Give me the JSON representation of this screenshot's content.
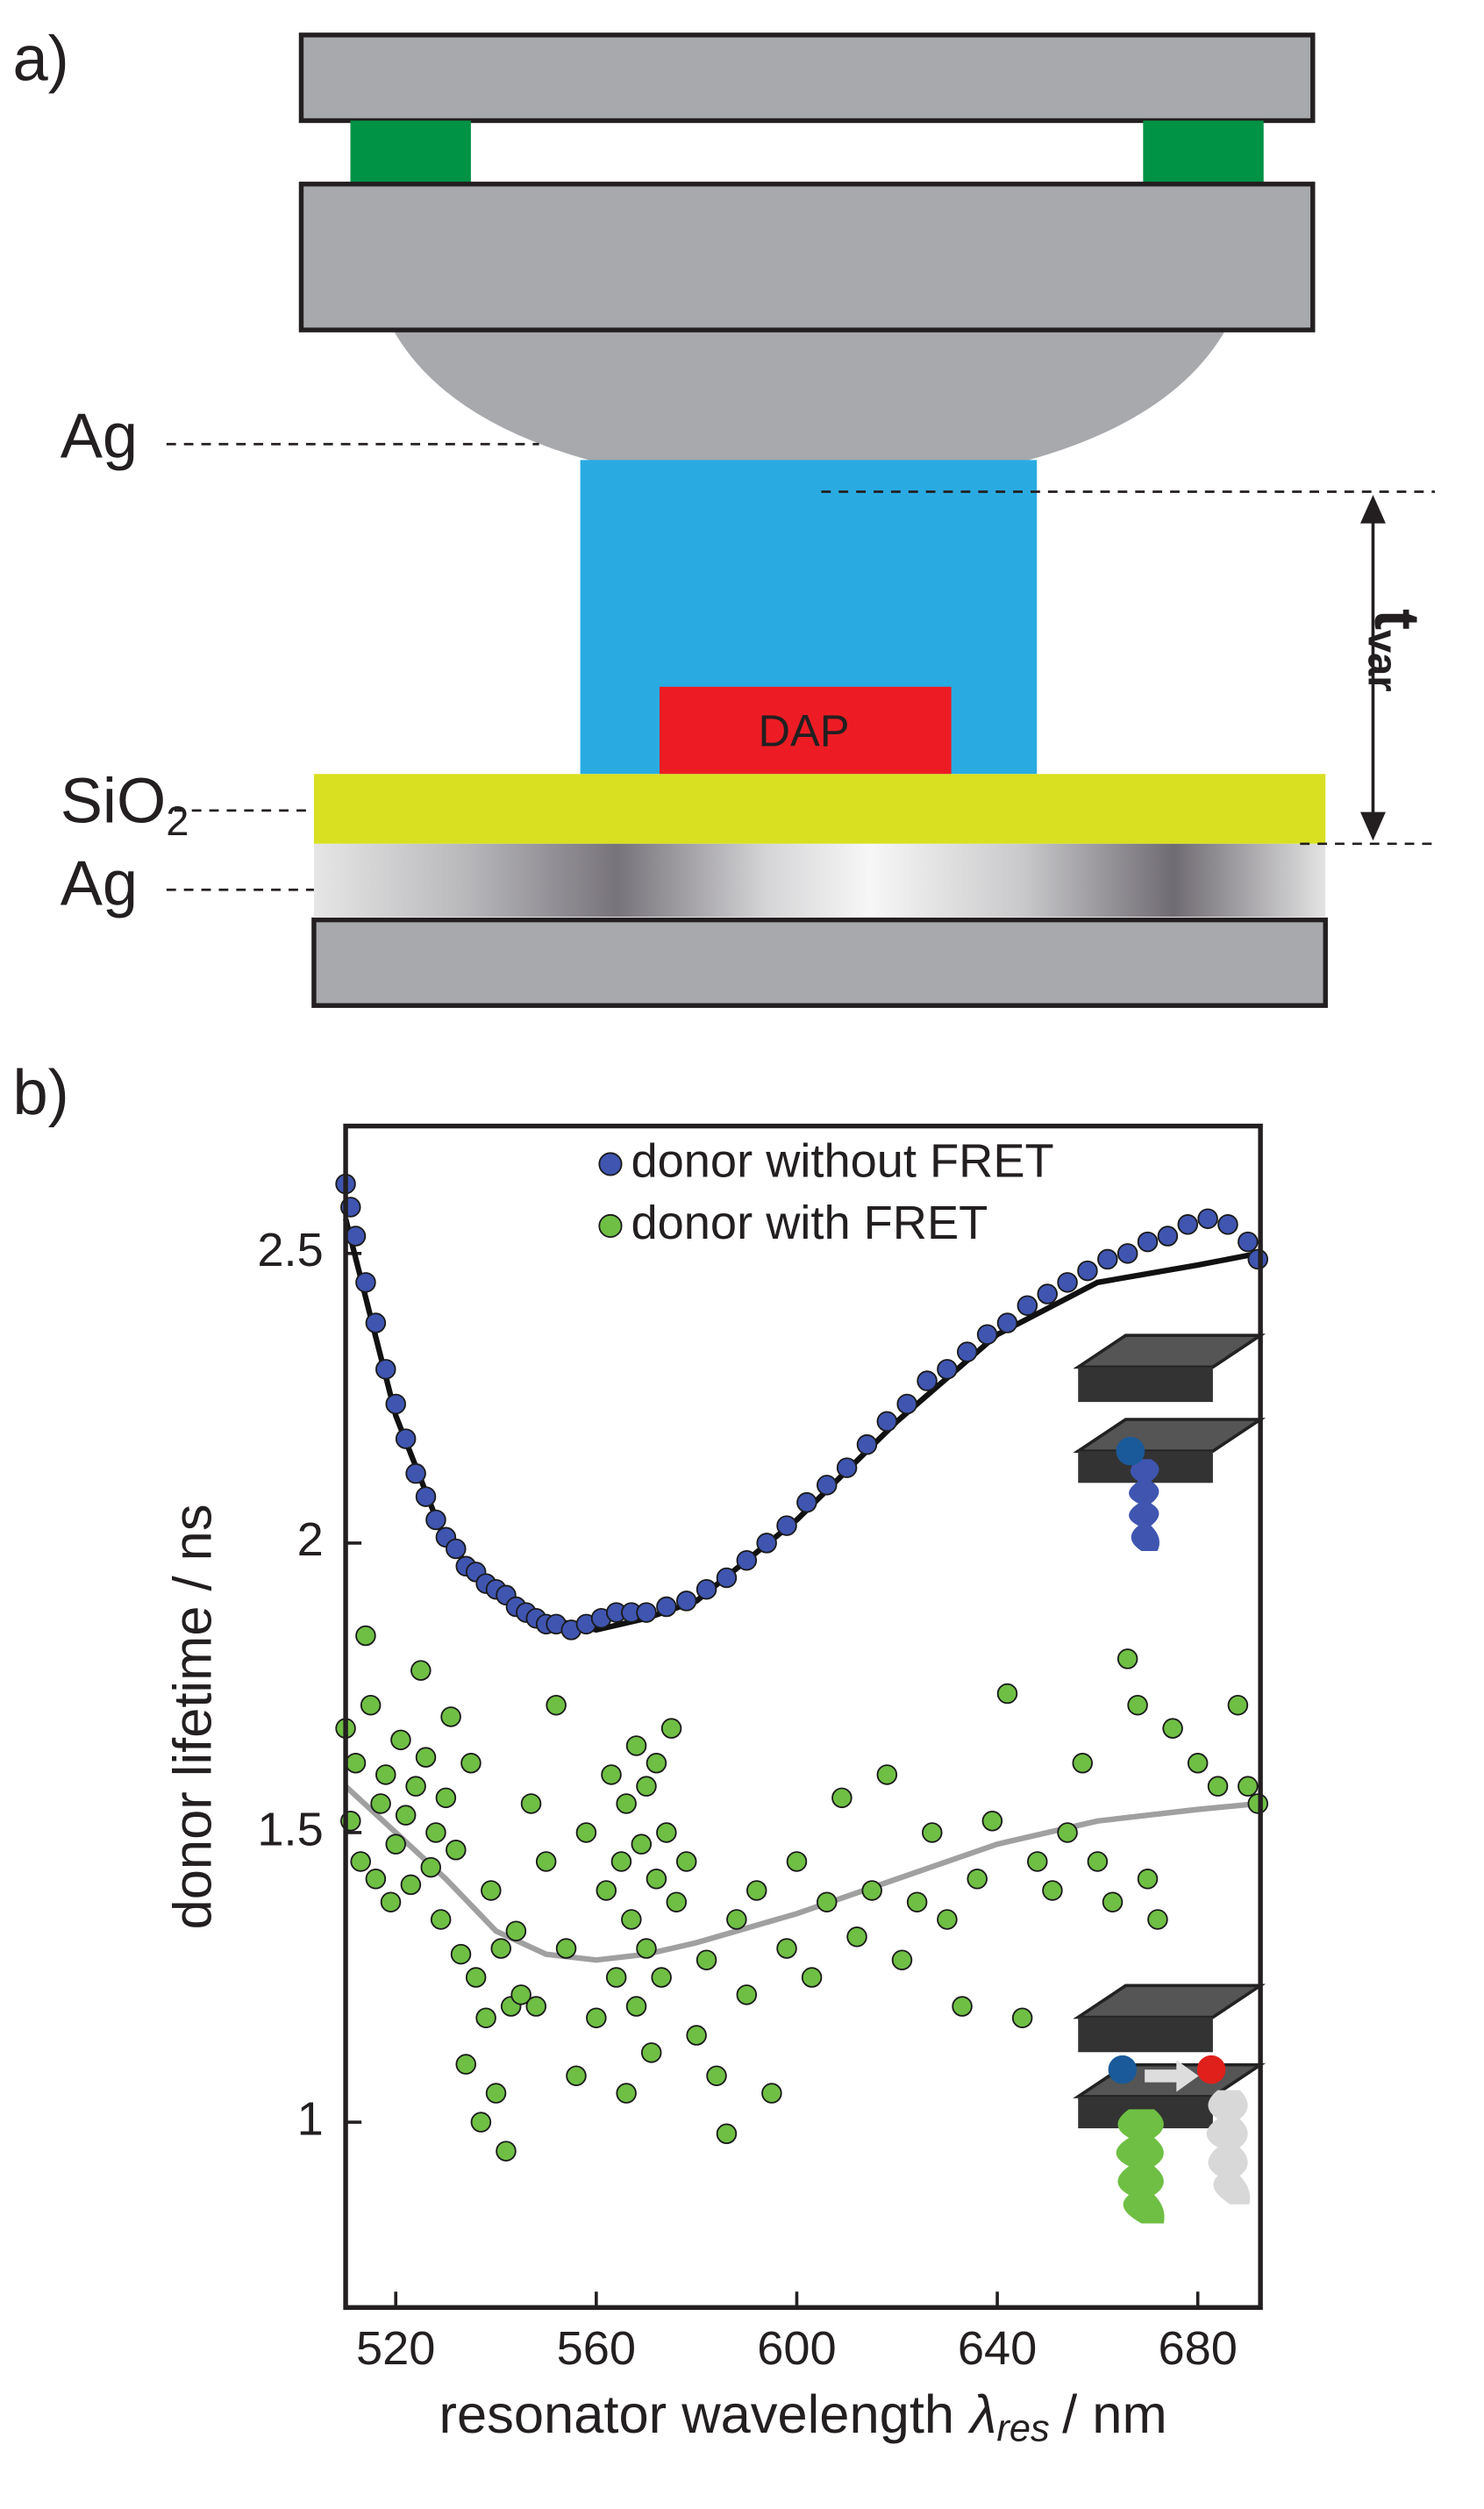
{
  "diagram": {
    "panel_a": "a)",
    "ag_top": "Ag",
    "sio2": "SiO",
    "sio2_sub": "2",
    "ag_bottom": "Ag",
    "dap": "DAP",
    "t": "t",
    "t_sub": "var"
  },
  "chart_data": {
    "type": "scatter",
    "panel": "b)",
    "xlabel": "resonator wavelength",
    "xlabel_symbol": "λ",
    "xlabel_sub": "res",
    "xlabel_unit": "/ nm",
    "ylabel": "donor lifetime / ns",
    "xlim": [
      510,
      692.5
    ],
    "ylim": [
      0.68,
      2.72
    ],
    "xticks": [
      520,
      560,
      600,
      640,
      680
    ],
    "yticks": [
      1,
      1.5,
      2,
      2.5
    ],
    "legend": "top",
    "series": [
      {
        "name": "donor without FRET",
        "color": "#3f55b0",
        "kind": "points",
        "x": [
          510,
          511,
          512,
          514,
          516,
          518,
          520,
          522,
          524,
          526,
          528,
          530,
          532,
          534,
          536,
          538,
          540,
          542,
          544,
          546,
          548,
          550,
          552,
          555,
          558,
          561,
          564,
          567,
          570,
          574,
          578,
          582,
          586,
          590,
          594,
          598,
          602,
          606,
          610,
          614,
          618,
          622,
          626,
          630,
          634,
          638,
          642,
          646,
          650,
          654,
          658,
          662,
          666,
          670,
          674,
          678,
          682,
          686,
          690,
          692
        ],
        "values": [
          2.62,
          2.58,
          2.53,
          2.45,
          2.38,
          2.3,
          2.24,
          2.18,
          2.12,
          2.08,
          2.04,
          2.01,
          1.99,
          1.96,
          1.95,
          1.93,
          1.92,
          1.91,
          1.89,
          1.88,
          1.87,
          1.86,
          1.86,
          1.85,
          1.86,
          1.87,
          1.88,
          1.88,
          1.88,
          1.89,
          1.9,
          1.92,
          1.94,
          1.97,
          2.0,
          2.03,
          2.07,
          2.1,
          2.13,
          2.17,
          2.21,
          2.24,
          2.28,
          2.3,
          2.33,
          2.36,
          2.38,
          2.41,
          2.43,
          2.45,
          2.47,
          2.49,
          2.5,
          2.52,
          2.53,
          2.55,
          2.56,
          2.55,
          2.52,
          2.49
        ]
      },
      {
        "name": "donor with FRET",
        "color": "#6fbf44",
        "kind": "points",
        "x": [
          510,
          511,
          512,
          513,
          514,
          515,
          516,
          517,
          518,
          519,
          520,
          521,
          522,
          523,
          524,
          525,
          526,
          527,
          528,
          529,
          530,
          531,
          532,
          533,
          534,
          535,
          536,
          537,
          538,
          539,
          540,
          541,
          542,
          543,
          544,
          545,
          547,
          548,
          550,
          552,
          554,
          556,
          558,
          560,
          562,
          563,
          564,
          565,
          566,
          566,
          567,
          568,
          568,
          569,
          570,
          570,
          571,
          572,
          572,
          573,
          574,
          575,
          576,
          578,
          580,
          582,
          584,
          586,
          588,
          590,
          592,
          595,
          598,
          600,
          603,
          606,
          609,
          612,
          615,
          618,
          621,
          624,
          627,
          630,
          633,
          636,
          639,
          642,
          645,
          648,
          651,
          654,
          657,
          660,
          663,
          666,
          668,
          670,
          672,
          675,
          680,
          684,
          688,
          690,
          692
        ],
        "values": [
          1.68,
          1.52,
          1.62,
          1.45,
          1.84,
          1.72,
          1.42,
          1.55,
          1.6,
          1.38,
          1.48,
          1.66,
          1.53,
          1.41,
          1.58,
          1.78,
          1.63,
          1.44,
          1.5,
          1.35,
          1.56,
          1.7,
          1.47,
          1.29,
          1.1,
          1.62,
          1.25,
          1.0,
          1.18,
          1.4,
          1.05,
          1.3,
          0.95,
          1.2,
          1.33,
          1.22,
          1.55,
          1.2,
          1.45,
          1.72,
          1.3,
          1.08,
          1.5,
          1.18,
          1.4,
          1.6,
          1.25,
          1.45,
          1.05,
          1.55,
          1.35,
          1.65,
          1.2,
          1.48,
          1.3,
          1.58,
          1.12,
          1.42,
          1.62,
          1.25,
          1.5,
          1.68,
          1.38,
          1.45,
          1.15,
          1.28,
          1.08,
          0.98,
          1.35,
          1.22,
          1.4,
          1.05,
          1.3,
          1.45,
          1.25,
          1.38,
          1.56,
          1.32,
          1.4,
          1.6,
          1.28,
          1.38,
          1.5,
          1.35,
          1.2,
          1.42,
          1.52,
          1.74,
          1.18,
          1.45,
          1.4,
          1.5,
          1.62,
          1.45,
          1.38,
          1.8,
          1.72,
          1.42,
          1.35,
          1.68,
          1.62,
          1.58,
          1.72,
          1.58,
          1.55
        ]
      },
      {
        "color": "#111111",
        "kind": "line",
        "x": [
          510,
          520,
          530,
          540,
          550,
          560,
          570,
          580,
          600,
          620,
          640,
          660,
          680,
          692
        ],
        "values": [
          2.56,
          2.22,
          2.0,
          1.92,
          1.87,
          1.85,
          1.87,
          1.9,
          2.04,
          2.21,
          2.36,
          2.45,
          2.48,
          2.5
        ]
      },
      {
        "color": "#a0a0a0",
        "kind": "line",
        "x": [
          510,
          520,
          530,
          540,
          550,
          560,
          570,
          580,
          600,
          620,
          640,
          660,
          680,
          692
        ],
        "values": [
          1.58,
          1.5,
          1.42,
          1.33,
          1.29,
          1.28,
          1.29,
          1.31,
          1.36,
          1.42,
          1.48,
          1.52,
          1.54,
          1.55
        ]
      }
    ]
  }
}
